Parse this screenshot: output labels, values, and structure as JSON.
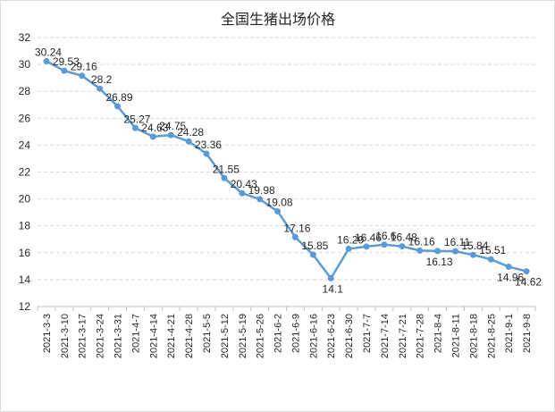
{
  "chart_data": {
    "type": "line",
    "title": "全国生猪出场价格",
    "xlabel": "",
    "ylabel": "",
    "ylim": [
      12,
      32
    ],
    "yticks": [
      12,
      14,
      16,
      18,
      20,
      22,
      24,
      26,
      28,
      30,
      32
    ],
    "grid": true,
    "legend": "none",
    "line_color": "#5b9bd5",
    "x": [
      "2021-3-3",
      "2021-3-10",
      "2021-3-17",
      "2021-3-24",
      "2021-3-31",
      "2021-4-7",
      "2021-4-14",
      "2021-4-21",
      "2021-4-28",
      "2021-5-5",
      "2021-5-12",
      "2021-5-19",
      "2021-5-26",
      "2021-6-2",
      "2021-6-9",
      "2021-6-16",
      "2021-6-23",
      "2021-6-30",
      "2021-7-7",
      "2021-7-14",
      "2021-7-21",
      "2021-7-28",
      "2021-8-4",
      "2021-8-11",
      "2021-8-18",
      "2021-8-25",
      "2021-9-1",
      "2021-9-8"
    ],
    "values": [
      30.24,
      29.53,
      29.16,
      28.2,
      26.89,
      25.27,
      24.63,
      24.75,
      24.28,
      23.36,
      21.55,
      20.43,
      19.98,
      19.08,
      17.16,
      15.85,
      14.1,
      16.29,
      16.46,
      16.6,
      16.48,
      16.16,
      16.13,
      16.11,
      15.84,
      15.51,
      14.96,
      14.62
    ]
  }
}
